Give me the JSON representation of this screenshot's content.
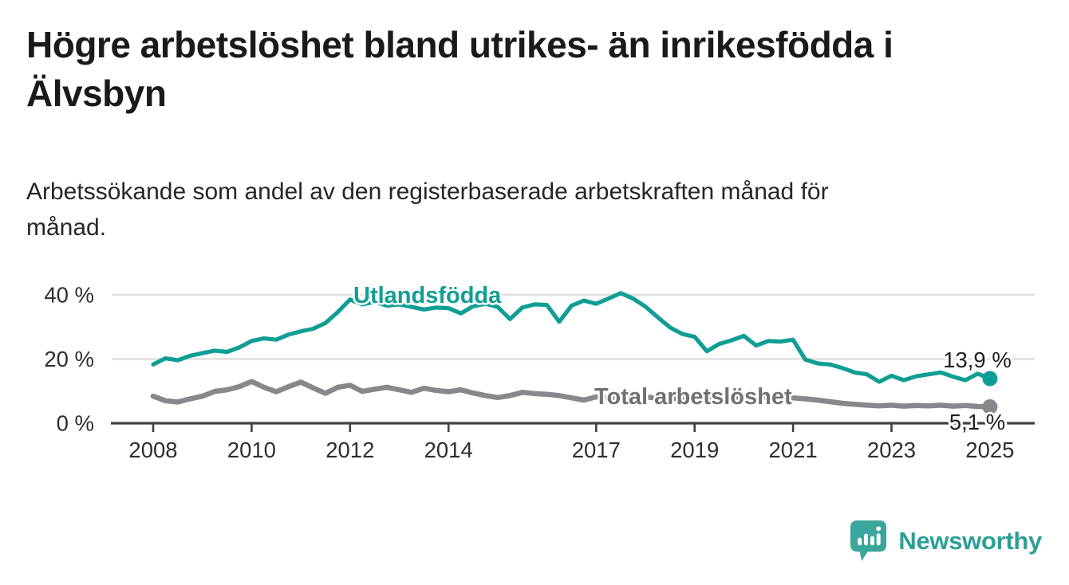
{
  "header": {
    "title": "Högre arbetslöshet bland utrikes- än inrikesfödda i Älvsbyn",
    "title_line1": "Högre arbetslöshet bland utrikes- än inrikesfödda i",
    "title_line2": "Älvsbyn",
    "subtitle": "Arbetssökande som andel av den registerbaserade arbetskraften månad för månad.",
    "subtitle_line1": "Arbetssökande som andel av den registerbaserade arbetskraften månad för",
    "subtitle_line2": "månad."
  },
  "chart_data": {
    "type": "line",
    "title": "Arbetssökande som andel av den registerbaserade arbetskraften månad för månad",
    "xlabel": "",
    "ylabel": "",
    "x_unit": "decimal_year_quarterly_estimates",
    "x_start": 2008.0,
    "x_step": 0.25,
    "xlim": [
      2007.2,
      2025.9
    ],
    "ylim": [
      0,
      44
    ],
    "grid": "horizontal",
    "x_ticks": [
      2008,
      2010,
      2012,
      2014,
      2017,
      2019,
      2021,
      2023,
      2025
    ],
    "y_ticks": [
      {
        "value": 0,
        "label": "0 %"
      },
      {
        "value": 20,
        "label": "20 %"
      },
      {
        "value": 40,
        "label": "40 %"
      }
    ],
    "style": {
      "grid_color": "#d9d9d9",
      "axis_color": "#404040",
      "axis_text_color": "#2e2e2e",
      "background": "#ffffff"
    },
    "series": [
      {
        "name": "Utlandsfödda",
        "slug": "utlandsfodda",
        "color": "#109e94",
        "label_color": "#109e94",
        "end_label": "13,9 %",
        "end_value": 13.9,
        "values": [
          18.3,
          20.2,
          19.6,
          21.0,
          21.8,
          22.6,
          22.2,
          23.6,
          25.6,
          26.4,
          26.0,
          27.6,
          28.6,
          29.4,
          31.2,
          34.6,
          38.5,
          37.0,
          37.8,
          36.6,
          37.0,
          36.2,
          35.4,
          36.0,
          35.8,
          34.2,
          36.4,
          37.2,
          36.2,
          32.4,
          36.0,
          37.0,
          36.8,
          31.6,
          36.6,
          38.2,
          37.2,
          38.8,
          40.5,
          38.8,
          36.3,
          33.0,
          29.8,
          27.8,
          26.9,
          22.4,
          24.7,
          25.8,
          27.2,
          24.2,
          25.6,
          25.4,
          26.0,
          19.8,
          18.6,
          18.3,
          17.2,
          15.8,
          15.2,
          12.9,
          14.8,
          13.4,
          14.6,
          15.2,
          15.8,
          14.5,
          13.4,
          15.4,
          13.9
        ]
      },
      {
        "name": "Total arbetslöshet",
        "slug": "total-arbetsloshet",
        "color": "#87878c",
        "label_color": "#707076",
        "end_label": "5,1 %",
        "end_value": 5.1,
        "values": [
          8.4,
          7.0,
          6.6,
          7.6,
          8.4,
          9.9,
          10.4,
          11.4,
          13.0,
          11.2,
          9.8,
          11.4,
          12.8,
          11.0,
          9.3,
          11.2,
          11.8,
          9.9,
          10.6,
          11.2,
          10.4,
          9.6,
          10.9,
          10.2,
          9.8,
          10.4,
          9.4,
          8.6,
          8.0,
          8.6,
          9.6,
          9.2,
          9.0,
          8.6,
          7.9,
          7.2,
          8.2,
          8.0,
          7.8,
          8.0,
          8.2,
          7.8,
          7.6,
          7.8,
          8.0,
          7.6,
          7.8,
          8.0,
          8.2,
          8.4,
          8.0,
          7.8,
          7.9,
          7.6,
          7.2,
          6.7,
          6.2,
          5.9,
          5.6,
          5.4,
          5.6,
          5.3,
          5.5,
          5.4,
          5.6,
          5.3,
          5.5,
          5.2,
          5.1
        ]
      }
    ],
    "legend_position": "inline-labels"
  },
  "branding": {
    "name": "Newsworthy",
    "logo_color": "#3ba69b",
    "icon": "newsworthy-speech-bubble-barchart-icon"
  }
}
